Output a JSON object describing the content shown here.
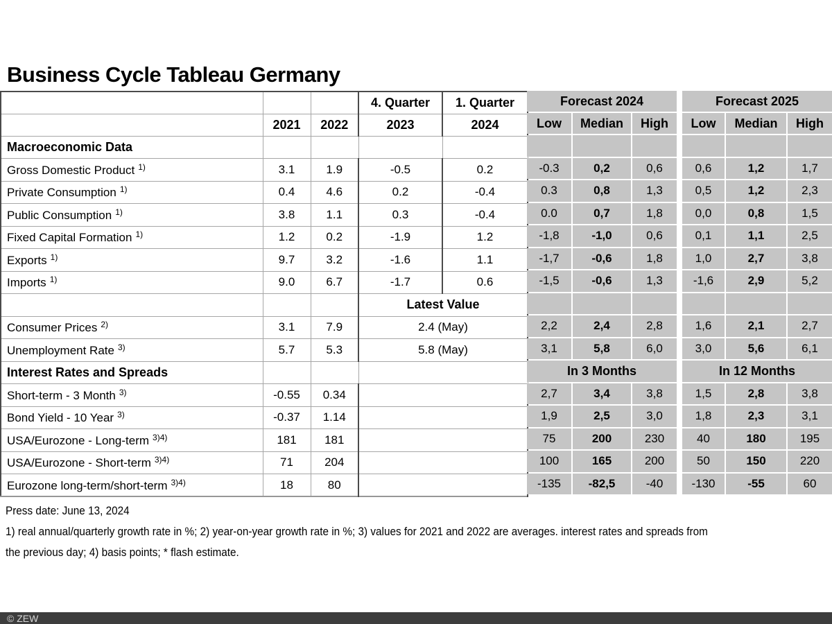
{
  "title": "Business Cycle Tableau Germany",
  "colors": {
    "forecast_cell_gray": "#c5c5c5",
    "grid_line_light": "#a6a6a6",
    "grid_line_dark": "#4a4a4a",
    "bottom_bar_bg": "#3d3d3d",
    "bottom_bar_text": "#d6d6d6"
  },
  "table": {
    "header": {
      "q4_label": "4. Quarter",
      "q1_label": "1. Quarter",
      "y2021": "2021",
      "y2022": "2022",
      "y2023": "2023",
      "y2024": "2024",
      "forecast_2024": "Forecast 2024",
      "forecast_2025": "Forecast 2025",
      "low": "Low",
      "median": "Median",
      "high": "High"
    },
    "rows": [
      {
        "kind": "section",
        "label": "Macroeconomic Data",
        "gray": [
          "",
          "",
          "",
          "",
          "",
          ""
        ]
      },
      {
        "kind": "data",
        "label": "Gross Domestic Product",
        "sup": "1)",
        "y2021": "3.1",
        "y2022": "1.9",
        "q4": "-0.5",
        "q1": "0.2",
        "gray": [
          "-0.3",
          "0,2",
          "0,6",
          "0,6",
          "1,2",
          "1,7"
        ]
      },
      {
        "kind": "data",
        "label": "Private Consumption",
        "sup": "1)",
        "y2021": "0.4",
        "y2022": "4.6",
        "q4": "0.2",
        "q1": "-0.4",
        "gray": [
          "0.3",
          "0,8",
          "1,3",
          "0,5",
          "1,2",
          "2,3"
        ]
      },
      {
        "kind": "data",
        "label": "Public Consumption",
        "sup": "1)",
        "y2021": "3.8",
        "y2022": "1.1",
        "q4": "0.3",
        "q1": "-0.4",
        "gray": [
          "0.0",
          "0,7",
          "1,8",
          "0,0",
          "0,8",
          "1,5"
        ]
      },
      {
        "kind": "data",
        "label": "Fixed Capital Formation",
        "sup": "1)",
        "y2021": "1.2",
        "y2022": "0.2",
        "q4": "-1.9",
        "q1": "1.2",
        "gray": [
          "-1,8",
          "-1,0",
          "0,6",
          "0,1",
          "1,1",
          "2,5"
        ]
      },
      {
        "kind": "data",
        "label": "Exports",
        "sup": "1)",
        "y2021": "9.7",
        "y2022": "3.2",
        "q4": "-1.6",
        "q1": "1.1",
        "gray": [
          "-1,7",
          "-0,6",
          "1,8",
          "1,0",
          "2,7",
          "3,8"
        ]
      },
      {
        "kind": "data",
        "label": "Imports",
        "sup": "1)",
        "y2021": "9.0",
        "y2022": "6.7",
        "q4": "-1.7",
        "q1": "0.6",
        "gray": [
          "-1,5",
          "-0,6",
          "1,3",
          "-1,6",
          "2,9",
          "5,2"
        ]
      },
      {
        "kind": "merged-header",
        "label": "",
        "merged": "Latest Value",
        "gray": [
          "",
          "",
          "",
          "",
          "",
          ""
        ]
      },
      {
        "kind": "data-merged",
        "label": "Consumer Prices",
        "sup": "2)",
        "y2021": "3.1",
        "y2022": "7.9",
        "merged": "2.4 (May)",
        "gray": [
          "2,2",
          "2,4",
          "2,8",
          "1,6",
          "2,1",
          "2,7"
        ]
      },
      {
        "kind": "data-merged",
        "label": "Unemployment Rate",
        "sup": "3)",
        "y2021": "5.7",
        "y2022": "5.3",
        "merged": "5.8 (May)",
        "gray": [
          "3,1",
          "5,8",
          "6,0",
          "3,0",
          "5,6",
          "6,1"
        ]
      },
      {
        "kind": "section-merged",
        "label": "Interest Rates and Spreads",
        "merged": "",
        "gray_spans": [
          "In 3 Months",
          "In 12 Months"
        ]
      },
      {
        "kind": "data-merged",
        "label": "Short-term - 3 Month",
        "sup": "3)",
        "y2021": "-0.55",
        "y2022": "0.34",
        "merged": "",
        "gray": [
          "2,7",
          "3,4",
          "3,8",
          "1,5",
          "2,8",
          "3,8"
        ]
      },
      {
        "kind": "data-merged",
        "label": "Bond Yield - 10 Year",
        "sup": "3)",
        "y2021": "-0.37",
        "y2022": "1.14",
        "merged": "",
        "gray": [
          "1,9",
          "2,5",
          "3,0",
          "1,8",
          "2,3",
          "3,1"
        ]
      },
      {
        "kind": "data-merged",
        "label": "USA/Eurozone - Long-term",
        "sup": "3)4)",
        "y2021": "181",
        "y2022": "181",
        "merged": "",
        "gray": [
          "75",
          "200",
          "230",
          "40",
          "180",
          "195"
        ]
      },
      {
        "kind": "data-merged",
        "label": "USA/Eurozone - Short-term",
        "sup": "3)4)",
        "y2021": "71",
        "y2022": "204",
        "merged": "",
        "gray": [
          "100",
          "165",
          "200",
          "50",
          "150",
          "220"
        ]
      },
      {
        "kind": "data-merged",
        "label": "Eurozone long-term/short-term",
        "sup": "3)4)",
        "y2021": "18",
        "y2022": "80",
        "merged": "",
        "gray": [
          "-135",
          "-82,5",
          "-40",
          "-130",
          "-55",
          "60"
        ]
      }
    ]
  },
  "footer": {
    "press_date": "Press date: June 13, 2024",
    "footnote1": "1) real annual/quarterly growth rate in %; 2) year-on-year growth rate in %; 3) values for 2021 and 2022 are averages. interest rates and spreads from",
    "footnote2": "the previous day; 4) basis points; * flash estimate.",
    "copyright": "© ZEW"
  }
}
